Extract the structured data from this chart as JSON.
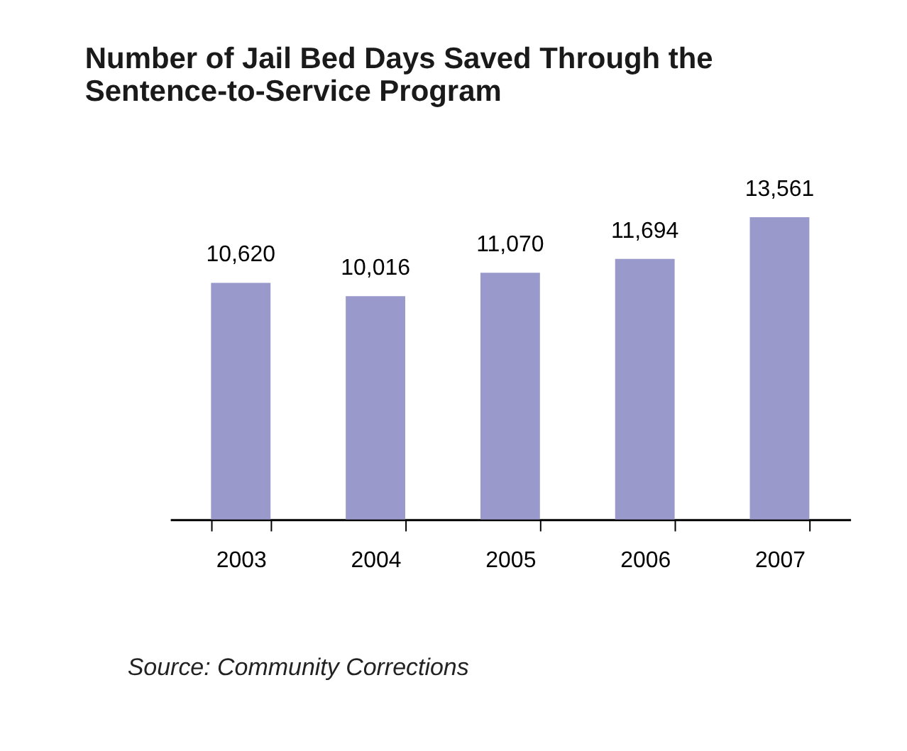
{
  "chart_data": {
    "type": "bar",
    "title": "Number of Jail Bed Days Saved Through the Sentence-to-Service Program",
    "categories": [
      "2003",
      "2004",
      "2005",
      "2006",
      "2007"
    ],
    "values": [
      10620,
      10016,
      11070,
      11694,
      13561
    ],
    "color": "#9999cc",
    "value_labels": [
      "10,620",
      "10,016",
      "11,070",
      "11,694",
      "13,561"
    ],
    "grid": false,
    "tick_labels": "x",
    "annotations": [
      "Source: Community Corrections"
    ]
  }
}
